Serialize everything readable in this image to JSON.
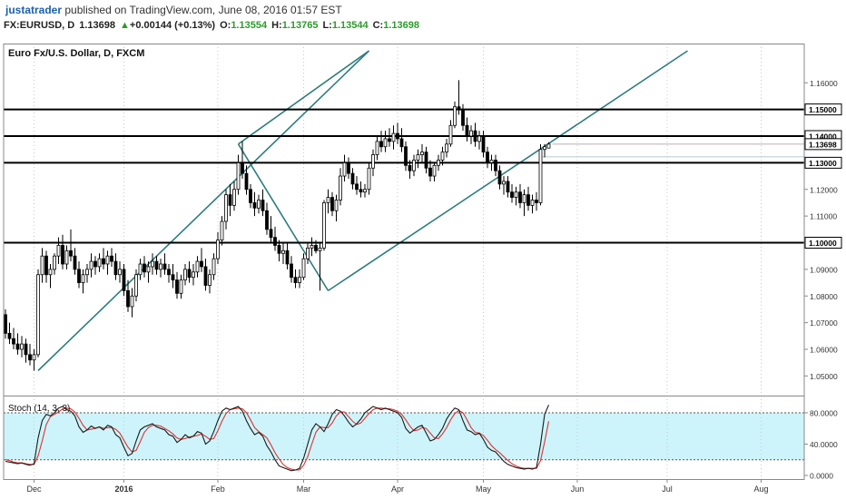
{
  "header": {
    "author": "justatrader",
    "published": "published on TradingView.com, June 08, 2016 01:57 EST",
    "symbol": "FX:EURUSD, D",
    "last": "1.13698",
    "change_arrow": "▲",
    "change": "+0.00144 (+0.13%)",
    "o_label": "O:",
    "o_val": "1.13554",
    "h_label": "H:",
    "h_val": "1.13765",
    "l_label": "L:",
    "l_val": "1.13544",
    "c_label": "C:",
    "c_val": "1.13698"
  },
  "chart_data": {
    "type": "candlestick",
    "title": "Euro Fx/U.S. Dollar, D, FXCM",
    "colors": {
      "up_body": "#ffffff",
      "down_body": "#000000",
      "wick": "#000000",
      "channel": "#2e7d7e",
      "level": "#000000",
      "stoch_k": "#1a1a1a",
      "stoch_d": "#e03030",
      "stoch_band": "#cdf4fb"
    },
    "ylim": [
      1.044,
      1.172
    ],
    "yticks": [
      "1.16000",
      "1.15000",
      "1.14000",
      "1.13000",
      "1.12000",
      "1.11000",
      "1.10000",
      "1.09000",
      "1.08000",
      "1.07000",
      "1.06000",
      "1.05000"
    ],
    "xticks": [
      {
        "label": "Dec",
        "i": 7
      },
      {
        "label": "2016",
        "i": 29
      },
      {
        "label": "Feb",
        "i": 52
      },
      {
        "label": "Mar",
        "i": 73
      },
      {
        "label": "Apr",
        "i": 96
      },
      {
        "label": "May",
        "i": 117
      },
      {
        "label": "Jun",
        "i": 140
      },
      {
        "label": "Jul",
        "i": 162
      },
      {
        "label": "Aug",
        "i": 185
      }
    ],
    "horizontal_levels": [
      {
        "label": "1.15000",
        "y": 1.15
      },
      {
        "label": "1.14000",
        "y": 1.14
      },
      {
        "label": "1.13000",
        "y": 1.13
      },
      {
        "label": "1.10000",
        "y": 1.1
      }
    ],
    "last_price_label": "1.13698",
    "last_price": 1.13698,
    "channel_lines": [
      {
        "from": [
          8,
          1.052
        ],
        "to": [
          89,
          1.172
        ]
      },
      {
        "from": [
          57,
          1.137
        ],
        "to": [
          79,
          1.082
        ]
      },
      {
        "from": [
          79,
          1.082
        ],
        "to": [
          167,
          1.172
        ]
      },
      {
        "from": [
          57,
          1.137
        ],
        "to": [
          89,
          1.172
        ]
      }
    ],
    "candles": [
      [
        1.073,
        1.075,
        1.064,
        1.066
      ],
      [
        1.066,
        1.07,
        1.062,
        1.064
      ],
      [
        1.064,
        1.068,
        1.06,
        1.062
      ],
      [
        1.062,
        1.066,
        1.058,
        1.06
      ],
      [
        1.06,
        1.065,
        1.057,
        1.062
      ],
      [
        1.062,
        1.064,
        1.055,
        1.058
      ],
      [
        1.058,
        1.062,
        1.054,
        1.056
      ],
      [
        1.056,
        1.06,
        1.052,
        1.058
      ],
      [
        1.058,
        1.09,
        1.057,
        1.088
      ],
      [
        1.088,
        1.098,
        1.085,
        1.095
      ],
      [
        1.095,
        1.097,
        1.085,
        1.088
      ],
      [
        1.088,
        1.092,
        1.083,
        1.09
      ],
      [
        1.09,
        1.096,
        1.088,
        1.095
      ],
      [
        1.095,
        1.102,
        1.092,
        1.099
      ],
      [
        1.099,
        1.103,
        1.09,
        1.092
      ],
      [
        1.092,
        1.099,
        1.09,
        1.097
      ],
      [
        1.097,
        1.105,
        1.093,
        1.095
      ],
      [
        1.095,
        1.098,
        1.088,
        1.09
      ],
      [
        1.09,
        1.093,
        1.083,
        1.085
      ],
      [
        1.085,
        1.09,
        1.081,
        1.088
      ],
      [
        1.088,
        1.092,
        1.085,
        1.09
      ],
      [
        1.09,
        1.096,
        1.087,
        1.093
      ],
      [
        1.093,
        1.095,
        1.088,
        1.091
      ],
      [
        1.091,
        1.096,
        1.089,
        1.094
      ],
      [
        1.094,
        1.098,
        1.09,
        1.092
      ],
      [
        1.092,
        1.097,
        1.088,
        1.095
      ],
      [
        1.095,
        1.098,
        1.091,
        1.093
      ],
      [
        1.093,
        1.096,
        1.086,
        1.088
      ],
      [
        1.088,
        1.093,
        1.085,
        1.09
      ],
      [
        1.09,
        1.092,
        1.08,
        1.082
      ],
      [
        1.082,
        1.086,
        1.074,
        1.076
      ],
      [
        1.076,
        1.083,
        1.072,
        1.08
      ],
      [
        1.08,
        1.09,
        1.078,
        1.088
      ],
      [
        1.088,
        1.094,
        1.086,
        1.092
      ],
      [
        1.092,
        1.095,
        1.087,
        1.089
      ],
      [
        1.089,
        1.093,
        1.085,
        1.091
      ],
      [
        1.091,
        1.096,
        1.088,
        1.093
      ],
      [
        1.093,
        1.095,
        1.088,
        1.09
      ],
      [
        1.09,
        1.094,
        1.087,
        1.092
      ],
      [
        1.092,
        1.096,
        1.088,
        1.09
      ],
      [
        1.09,
        1.092,
        1.085,
        1.088
      ],
      [
        1.088,
        1.092,
        1.083,
        1.086
      ],
      [
        1.086,
        1.089,
        1.079,
        1.081
      ],
      [
        1.081,
        1.088,
        1.079,
        1.086
      ],
      [
        1.086,
        1.092,
        1.084,
        1.09
      ],
      [
        1.09,
        1.093,
        1.085,
        1.087
      ],
      [
        1.087,
        1.092,
        1.084,
        1.089
      ],
      [
        1.089,
        1.095,
        1.087,
        1.093
      ],
      [
        1.093,
        1.098,
        1.089,
        1.091
      ],
      [
        1.091,
        1.094,
        1.082,
        1.084
      ],
      [
        1.084,
        1.09,
        1.081,
        1.088
      ],
      [
        1.088,
        1.096,
        1.086,
        1.094
      ],
      [
        1.094,
        1.104,
        1.092,
        1.101
      ],
      [
        1.101,
        1.11,
        1.099,
        1.108
      ],
      [
        1.108,
        1.12,
        1.105,
        1.118
      ],
      [
        1.118,
        1.122,
        1.11,
        1.114
      ],
      [
        1.114,
        1.123,
        1.112,
        1.12
      ],
      [
        1.12,
        1.133,
        1.118,
        1.13
      ],
      [
        1.13,
        1.138,
        1.124,
        1.126
      ],
      [
        1.126,
        1.129,
        1.118,
        1.12
      ],
      [
        1.12,
        1.122,
        1.113,
        1.115
      ],
      [
        1.115,
        1.119,
        1.11,
        1.113
      ],
      [
        1.113,
        1.118,
        1.111,
        1.116
      ],
      [
        1.116,
        1.12,
        1.11,
        1.112
      ],
      [
        1.112,
        1.115,
        1.103,
        1.105
      ],
      [
        1.105,
        1.11,
        1.1,
        1.102
      ],
      [
        1.102,
        1.106,
        1.097,
        1.099
      ],
      [
        1.099,
        1.101,
        1.093,
        1.096
      ],
      [
        1.096,
        1.1,
        1.092,
        1.097
      ],
      [
        1.097,
        1.1,
        1.09,
        1.092
      ],
      [
        1.092,
        1.095,
        1.085,
        1.087
      ],
      [
        1.087,
        1.09,
        1.083,
        1.085
      ],
      [
        1.085,
        1.09,
        1.083,
        1.087
      ],
      [
        1.087,
        1.096,
        1.086,
        1.094
      ],
      [
        1.094,
        1.1,
        1.092,
        1.098
      ],
      [
        1.098,
        1.102,
        1.095,
        1.099
      ],
      [
        1.099,
        1.101,
        1.096,
        1.097
      ],
      [
        1.097,
        1.1,
        1.082,
        1.098
      ],
      [
        1.098,
        1.116,
        1.097,
        1.115
      ],
      [
        1.115,
        1.12,
        1.111,
        1.117
      ],
      [
        1.117,
        1.119,
        1.11,
        1.112
      ],
      [
        1.112,
        1.118,
        1.108,
        1.116
      ],
      [
        1.116,
        1.128,
        1.114,
        1.125
      ],
      [
        1.125,
        1.133,
        1.123,
        1.13
      ],
      [
        1.13,
        1.132,
        1.124,
        1.126
      ],
      [
        1.126,
        1.128,
        1.12,
        1.122
      ],
      [
        1.122,
        1.125,
        1.118,
        1.12
      ],
      [
        1.12,
        1.123,
        1.117,
        1.119
      ],
      [
        1.119,
        1.122,
        1.117,
        1.12
      ],
      [
        1.12,
        1.13,
        1.118,
        1.128
      ],
      [
        1.128,
        1.135,
        1.125,
        1.133
      ],
      [
        1.133,
        1.14,
        1.131,
        1.138
      ],
      [
        1.138,
        1.142,
        1.134,
        1.136
      ],
      [
        1.136,
        1.142,
        1.134,
        1.139
      ],
      [
        1.139,
        1.143,
        1.136,
        1.138
      ],
      [
        1.138,
        1.144,
        1.135,
        1.141
      ],
      [
        1.141,
        1.145,
        1.137,
        1.139
      ],
      [
        1.139,
        1.143,
        1.134,
        1.136
      ],
      [
        1.136,
        1.138,
        1.127,
        1.129
      ],
      [
        1.129,
        1.131,
        1.124,
        1.127
      ],
      [
        1.127,
        1.133,
        1.125,
        1.131
      ],
      [
        1.131,
        1.135,
        1.128,
        1.133
      ],
      [
        1.133,
        1.137,
        1.13,
        1.134
      ],
      [
        1.134,
        1.136,
        1.126,
        1.128
      ],
      [
        1.128,
        1.131,
        1.123,
        1.125
      ],
      [
        1.125,
        1.13,
        1.123,
        1.129
      ],
      [
        1.129,
        1.133,
        1.127,
        1.131
      ],
      [
        1.131,
        1.136,
        1.129,
        1.134
      ],
      [
        1.134,
        1.139,
        1.132,
        1.137
      ],
      [
        1.137,
        1.146,
        1.136,
        1.144
      ],
      [
        1.144,
        1.153,
        1.143,
        1.151
      ],
      [
        1.151,
        1.161,
        1.148,
        1.15
      ],
      [
        1.15,
        1.152,
        1.142,
        1.144
      ],
      [
        1.144,
        1.147,
        1.138,
        1.14
      ],
      [
        1.14,
        1.144,
        1.137,
        1.142
      ],
      [
        1.142,
        1.145,
        1.136,
        1.138
      ],
      [
        1.138,
        1.142,
        1.135,
        1.14
      ],
      [
        1.14,
        1.142,
        1.132,
        1.134
      ],
      [
        1.134,
        1.136,
        1.128,
        1.13
      ],
      [
        1.13,
        1.133,
        1.127,
        1.131
      ],
      [
        1.131,
        1.133,
        1.125,
        1.127
      ],
      [
        1.127,
        1.129,
        1.12,
        1.122
      ],
      [
        1.122,
        1.125,
        1.118,
        1.123
      ],
      [
        1.123,
        1.125,
        1.117,
        1.119
      ],
      [
        1.119,
        1.122,
        1.115,
        1.117
      ],
      [
        1.117,
        1.121,
        1.114,
        1.119
      ],
      [
        1.119,
        1.122,
        1.113,
        1.115
      ],
      [
        1.115,
        1.12,
        1.11,
        1.118
      ],
      [
        1.118,
        1.121,
        1.112,
        1.114
      ],
      [
        1.114,
        1.118,
        1.111,
        1.116
      ],
      [
        1.116,
        1.119,
        1.112,
        1.115
      ],
      [
        1.115,
        1.137,
        1.114,
        1.135
      ],
      [
        1.135,
        1.137,
        1.132,
        1.136
      ],
      [
        1.1355,
        1.1377,
        1.1354,
        1.137
      ]
    ],
    "stoch": {
      "label": "Stoch (14, 3, 3)",
      "ylim": [
        0,
        95
      ],
      "yticks": [
        {
          "label": "80.0000",
          "v": 80
        },
        {
          "label": "40.0000",
          "v": 40
        },
        {
          "label": "0.0000",
          "v": 0
        }
      ],
      "bands": [
        20,
        80
      ],
      "k": [
        18,
        17,
        16,
        15,
        16,
        14,
        13,
        15,
        48,
        70,
        78,
        76,
        80,
        86,
        88,
        84,
        82,
        76,
        62,
        55,
        58,
        63,
        60,
        62,
        58,
        64,
        62,
        52,
        48,
        36,
        25,
        28,
        44,
        58,
        62,
        64,
        66,
        62,
        60,
        58,
        52,
        50,
        42,
        46,
        52,
        48,
        50,
        56,
        54,
        40,
        44,
        56,
        70,
        82,
        86,
        84,
        86,
        88,
        82,
        70,
        60,
        52,
        55,
        50,
        38,
        30,
        20,
        12,
        10,
        8,
        6,
        7,
        9,
        22,
        40,
        58,
        66,
        62,
        56,
        66,
        78,
        84,
        82,
        76,
        68,
        62,
        66,
        72,
        80,
        84,
        88,
        86,
        84,
        86,
        84,
        82,
        80,
        74,
        60,
        54,
        58,
        62,
        64,
        54,
        44,
        46,
        52,
        60,
        72,
        80,
        86,
        84,
        70,
        58,
        56,
        52,
        54,
        46,
        36,
        32,
        30,
        24,
        18,
        14,
        12,
        10,
        9,
        8,
        9,
        8,
        10,
        40,
        78,
        90
      ],
      "d": [
        20,
        19,
        17,
        16,
        16,
        15,
        14,
        14,
        25,
        44,
        65,
        75,
        78,
        81,
        85,
        86,
        85,
        81,
        73,
        64,
        58,
        59,
        60,
        62,
        60,
        61,
        61,
        59,
        54,
        45,
        36,
        30,
        32,
        43,
        55,
        61,
        64,
        64,
        63,
        60,
        57,
        53,
        48,
        46,
        47,
        49,
        50,
        51,
        53,
        50,
        46,
        47,
        57,
        69,
        79,
        84,
        85,
        86,
        85,
        80,
        71,
        61,
        56,
        52,
        48,
        39,
        29,
        21,
        14,
        10,
        8,
        7,
        7,
        13,
        24,
        40,
        55,
        62,
        61,
        61,
        67,
        76,
        81,
        81,
        75,
        69,
        65,
        67,
        73,
        79,
        84,
        86,
        86,
        85,
        85,
        84,
        82,
        78,
        71,
        63,
        57,
        58,
        61,
        60,
        54,
        48,
        47,
        53,
        61,
        71,
        79,
        83,
        80,
        71,
        61,
        55,
        54,
        51,
        45,
        38,
        33,
        29,
        24,
        19,
        15,
        12,
        10,
        9,
        9,
        9,
        9,
        19,
        43,
        69
      ]
    }
  }
}
